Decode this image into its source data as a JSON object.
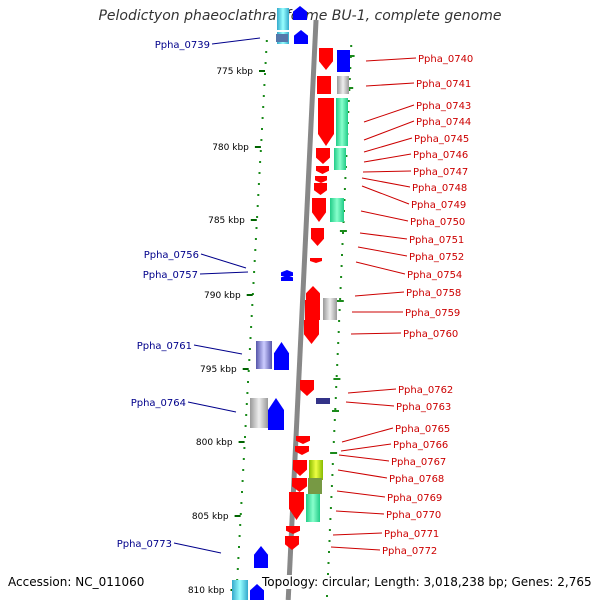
{
  "title": "Pelodictyon phaeoclathratiforme BU-1, complete genome",
  "footer": {
    "accession": "Accession: NC_011060",
    "summary": "Topology: circular; Length: 3,018,238 bp; Genes: 2,765"
  },
  "colors": {
    "backbone": "#888888",
    "left_label": "#00008b",
    "right_label": "#cc0000",
    "tick": "#006400"
  },
  "ruler_ticks": [
    "775 kbp",
    "780 kbp",
    "785 kbp",
    "790 kbp",
    "795 kbp",
    "800 kbp",
    "805 kbp",
    "810 kbp"
  ],
  "left_genes": [
    "Ppha_0739",
    "Ppha_0756",
    "Ppha_0757",
    "Ppha_0761",
    "Ppha_0764",
    "Ppha_0773"
  ],
  "right_genes": [
    "Ppha_0740",
    "Ppha_0741",
    "Ppha_0743",
    "Ppha_0744",
    "Ppha_0745",
    "Ppha_0746",
    "Ppha_0747",
    "Ppha_0748",
    "Ppha_0749",
    "Ppha_0750",
    "Ppha_0751",
    "Ppha_0752",
    "Ppha_0754",
    "Ppha_0758",
    "Ppha_0759",
    "Ppha_0760",
    "Ppha_0762",
    "Ppha_0763",
    "Ppha_0765",
    "Ppha_0766",
    "Ppha_0767",
    "Ppha_0768",
    "Ppha_0769",
    "Ppha_0770",
    "Ppha_0771",
    "Ppha_0772"
  ]
}
